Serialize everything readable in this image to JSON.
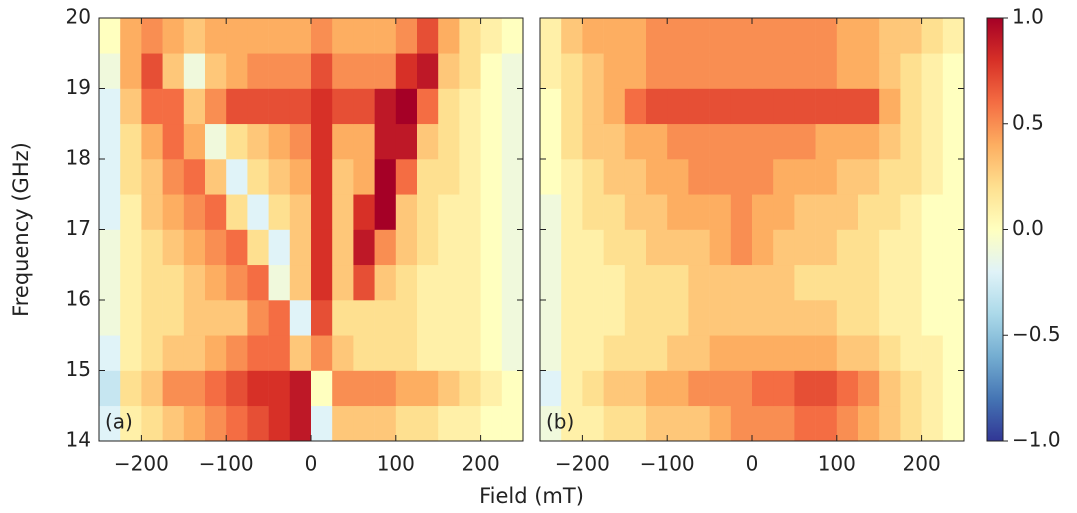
{
  "chart_data": [
    {
      "type": "heatmap",
      "annotation": "(a)",
      "xlabel": "Field (mT)",
      "ylabel": "Frequency (GHz)",
      "xlim": [
        -250,
        250
      ],
      "ylim": [
        14,
        20
      ],
      "xticks": [
        {
          "value": -200,
          "label": "−200"
        },
        {
          "value": -100,
          "label": "−100"
        },
        0,
        100,
        200
      ],
      "yticks": [
        14,
        15,
        16,
        17,
        18,
        19,
        20
      ],
      "show_yticklabels": true,
      "xbins": [
        -250,
        -225,
        -200,
        -175,
        -150,
        -125,
        -100,
        -75,
        -50,
        -25,
        0,
        25,
        50,
        75,
        100,
        125,
        150,
        175,
        200,
        225,
        250
      ],
      "ybins": [
        14,
        14.5,
        15,
        15.5,
        16,
        16.5,
        17,
        17.5,
        18,
        18.5,
        19,
        19.5,
        20
      ],
      "values": [
        [
          -0.2,
          0.1,
          0.2,
          0.3,
          0.4,
          0.5,
          0.6,
          0.7,
          0.8,
          0.9,
          -0.2,
          0.3,
          0.3,
          0.3,
          0.2,
          0.2,
          0.1,
          0.1,
          0.0,
          0.0
        ],
        [
          -0.3,
          0.2,
          0.3,
          0.5,
          0.5,
          0.6,
          0.7,
          0.8,
          0.8,
          0.9,
          0.0,
          0.5,
          0.5,
          0.5,
          0.4,
          0.4,
          0.3,
          0.2,
          0.1,
          0.0
        ],
        [
          -0.2,
          0.1,
          0.2,
          0.3,
          0.3,
          0.4,
          0.5,
          0.6,
          0.6,
          0.3,
          0.5,
          0.3,
          0.2,
          0.2,
          0.2,
          0.1,
          0.1,
          0.1,
          0.0,
          -0.1
        ],
        [
          -0.1,
          0.1,
          0.2,
          0.2,
          0.3,
          0.3,
          0.3,
          0.5,
          0.6,
          -0.2,
          0.7,
          0.2,
          0.2,
          0.2,
          0.2,
          0.1,
          0.1,
          0.1,
          0.0,
          -0.1
        ],
        [
          -0.1,
          0.1,
          0.2,
          0.2,
          0.3,
          0.4,
          0.5,
          0.6,
          -0.1,
          0.3,
          0.8,
          0.3,
          0.7,
          0.3,
          0.2,
          0.1,
          0.1,
          0.1,
          0.0,
          -0.1
        ],
        [
          -0.1,
          0.1,
          0.2,
          0.3,
          0.4,
          0.5,
          0.6,
          0.2,
          -0.2,
          0.3,
          0.8,
          0.3,
          0.9,
          0.5,
          0.3,
          0.2,
          0.1,
          0.1,
          0.0,
          -0.1
        ],
        [
          -0.2,
          0.1,
          0.3,
          0.4,
          0.5,
          0.6,
          0.2,
          -0.2,
          0.2,
          0.3,
          0.8,
          0.3,
          0.8,
          1.0,
          0.3,
          0.2,
          0.1,
          0.1,
          0.0,
          -0.1
        ],
        [
          -0.2,
          0.2,
          0.3,
          0.5,
          0.6,
          0.3,
          -0.2,
          0.2,
          0.3,
          0.4,
          0.8,
          0.3,
          0.4,
          1.0,
          0.6,
          0.2,
          0.2,
          0.1,
          0.0,
          -0.1
        ],
        [
          -0.2,
          0.2,
          0.4,
          0.6,
          0.4,
          -0.1,
          0.2,
          0.3,
          0.4,
          0.5,
          0.8,
          0.4,
          0.4,
          0.9,
          0.9,
          0.3,
          0.2,
          0.1,
          0.0,
          -0.1
        ],
        [
          -0.2,
          0.3,
          0.6,
          0.6,
          0.3,
          0.5,
          0.7,
          0.7,
          0.7,
          0.7,
          0.8,
          0.7,
          0.7,
          0.9,
          1.0,
          0.6,
          0.2,
          0.1,
          0.0,
          -0.1
        ],
        [
          -0.1,
          0.4,
          0.7,
          0.3,
          -0.1,
          0.3,
          0.4,
          0.5,
          0.5,
          0.5,
          0.7,
          0.5,
          0.5,
          0.5,
          0.8,
          0.9,
          0.3,
          0.2,
          0.0,
          -0.1
        ],
        [
          0.0,
          0.4,
          0.5,
          0.4,
          0.3,
          0.4,
          0.4,
          0.4,
          0.4,
          0.4,
          0.5,
          0.4,
          0.4,
          0.4,
          0.5,
          0.7,
          0.4,
          0.2,
          0.1,
          0.0
        ]
      ]
    },
    {
      "type": "heatmap",
      "annotation": "(b)",
      "xlim": [
        -250,
        250
      ],
      "ylim": [
        14,
        20
      ],
      "xticks": [
        {
          "value": -200,
          "label": "−200"
        },
        {
          "value": -100,
          "label": "−100"
        },
        0,
        100,
        200
      ],
      "yticks": [
        14,
        15,
        16,
        17,
        18,
        19,
        20
      ],
      "show_yticklabels": false,
      "xbins": [
        -250,
        -225,
        -200,
        -175,
        -150,
        -125,
        -100,
        -75,
        -50,
        -25,
        0,
        25,
        50,
        75,
        100,
        125,
        150,
        175,
        200,
        225,
        250
      ],
      "ybins": [
        14,
        14.5,
        15,
        15.5,
        16,
        16.5,
        17,
        17.5,
        18,
        18.5,
        19,
        19.5,
        20
      ],
      "values": [
        [
          -0.1,
          0.1,
          0.1,
          0.2,
          0.2,
          0.3,
          0.3,
          0.3,
          0.4,
          0.5,
          0.5,
          0.5,
          0.6,
          0.6,
          0.5,
          0.4,
          0.3,
          0.2,
          0.1,
          0.0
        ],
        [
          -0.2,
          0.1,
          0.2,
          0.3,
          0.3,
          0.4,
          0.4,
          0.5,
          0.5,
          0.5,
          0.6,
          0.6,
          0.7,
          0.7,
          0.6,
          0.5,
          0.3,
          0.2,
          0.1,
          0.0
        ],
        [
          -0.1,
          0.1,
          0.1,
          0.2,
          0.2,
          0.2,
          0.3,
          0.3,
          0.4,
          0.4,
          0.4,
          0.4,
          0.4,
          0.4,
          0.3,
          0.3,
          0.2,
          0.1,
          0.1,
          0.0
        ],
        [
          -0.1,
          0.1,
          0.1,
          0.1,
          0.2,
          0.2,
          0.2,
          0.3,
          0.3,
          0.3,
          0.3,
          0.3,
          0.3,
          0.3,
          0.2,
          0.2,
          0.1,
          0.1,
          0.0,
          0.0
        ],
        [
          -0.1,
          0.1,
          0.1,
          0.1,
          0.2,
          0.2,
          0.2,
          0.3,
          0.3,
          0.3,
          0.3,
          0.3,
          0.2,
          0.2,
          0.2,
          0.2,
          0.1,
          0.1,
          0.0,
          0.0
        ],
        [
          -0.1,
          0.1,
          0.1,
          0.2,
          0.2,
          0.3,
          0.3,
          0.3,
          0.4,
          0.5,
          0.4,
          0.3,
          0.3,
          0.3,
          0.2,
          0.2,
          0.1,
          0.1,
          0.0,
          0.0
        ],
        [
          -0.1,
          0.1,
          0.2,
          0.2,
          0.3,
          0.3,
          0.4,
          0.4,
          0.4,
          0.5,
          0.4,
          0.4,
          0.3,
          0.3,
          0.3,
          0.2,
          0.2,
          0.1,
          0.0,
          0.0
        ],
        [
          0.0,
          0.1,
          0.2,
          0.3,
          0.3,
          0.4,
          0.4,
          0.5,
          0.5,
          0.5,
          0.5,
          0.4,
          0.4,
          0.4,
          0.3,
          0.3,
          0.2,
          0.2,
          0.1,
          0.0
        ],
        [
          0.0,
          0.2,
          0.3,
          0.3,
          0.4,
          0.4,
          0.5,
          0.5,
          0.5,
          0.5,
          0.5,
          0.5,
          0.5,
          0.4,
          0.4,
          0.4,
          0.3,
          0.2,
          0.1,
          0.0
        ],
        [
          0.0,
          0.2,
          0.3,
          0.4,
          0.6,
          0.7,
          0.7,
          0.7,
          0.7,
          0.7,
          0.7,
          0.7,
          0.7,
          0.7,
          0.7,
          0.7,
          0.4,
          0.2,
          0.1,
          0.0
        ],
        [
          0.1,
          0.2,
          0.3,
          0.4,
          0.4,
          0.5,
          0.5,
          0.5,
          0.5,
          0.5,
          0.5,
          0.5,
          0.5,
          0.5,
          0.4,
          0.4,
          0.3,
          0.2,
          0.1,
          0.0
        ],
        [
          0.1,
          0.3,
          0.4,
          0.4,
          0.4,
          0.5,
          0.5,
          0.5,
          0.5,
          0.5,
          0.5,
          0.5,
          0.5,
          0.5,
          0.4,
          0.4,
          0.3,
          0.3,
          0.2,
          0.1
        ]
      ],
      "colorbar": {
        "lim": [
          -1,
          1
        ],
        "ticks": [
          {
            "value": -1,
            "label": "−1.0"
          },
          {
            "value": -0.5,
            "label": "−0.5"
          },
          {
            "value": 0,
            "label": "0.0"
          },
          {
            "value": 0.5,
            "label": "0.5"
          },
          {
            "value": 1,
            "label": "1.0"
          }
        ],
        "colors": [
          "#313695",
          "#4575b4",
          "#74add1",
          "#abd9e9",
          "#e0f3f8",
          "#ffffbf",
          "#fee090",
          "#fdae61",
          "#f46d43",
          "#d73027",
          "#a50026"
        ]
      }
    }
  ]
}
